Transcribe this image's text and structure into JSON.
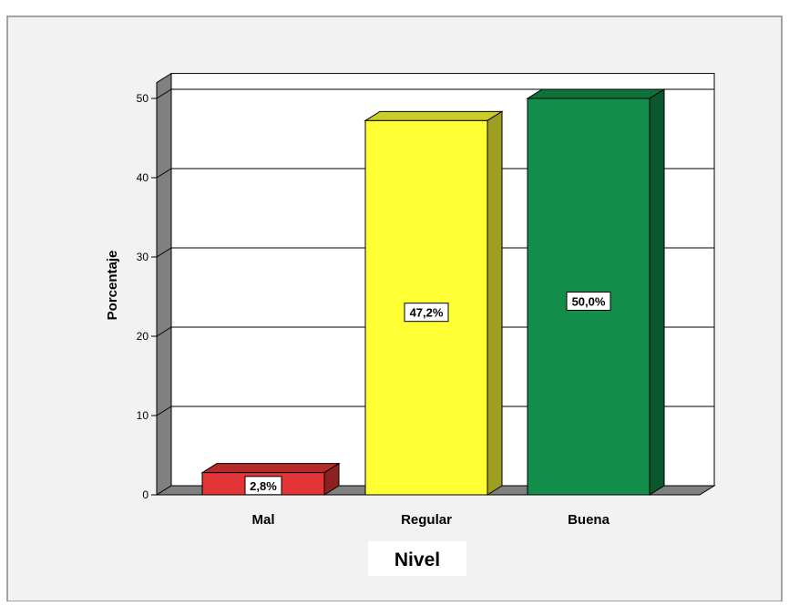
{
  "chart_data": {
    "type": "bar",
    "style": "3d",
    "categories": [
      "Mal",
      "Regular",
      "Buena"
    ],
    "values": [
      2.8,
      47.2,
      50.0
    ],
    "data_labels": [
      "2,8%",
      "47,2%",
      "50,0%"
    ],
    "colors": [
      "#e33535",
      "#ffff33",
      "#138e4a"
    ],
    "xlabel": "Nivel",
    "ylabel": "Porcentaje",
    "ylim": [
      0,
      50
    ],
    "yticks": [
      0,
      10,
      20,
      30,
      40,
      50
    ],
    "grid": true,
    "legend": "none"
  },
  "colors": {
    "frame_background": "#f2f2f2",
    "plot_background": "#ffffff",
    "floor_wall": "#808080"
  }
}
